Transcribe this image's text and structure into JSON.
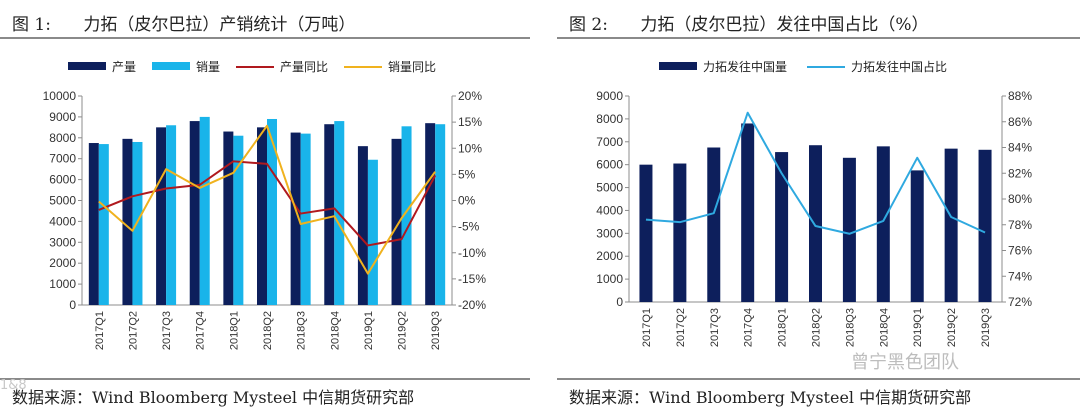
{
  "colors": {
    "dark_blue": "#0d1f5c",
    "light_blue": "#19b4ea",
    "red": "#b0191e",
    "yellow": "#f0b21e",
    "line_blue": "#2fa9e0"
  },
  "watermark": {
    "text": "曾宁黑色团队",
    "corner": "1&8"
  },
  "chart_data": [
    {
      "type": "bar+line",
      "title": "图 1:      力拓（皮尔巴拉）产销统计（万吨）",
      "source": "数据来源：Wind Bloomberg Mysteel 中信期货研究部",
      "categories": [
        "2017Q1",
        "2017Q2",
        "2017Q3",
        "2017Q4",
        "2018Q1",
        "2018Q2",
        "2018Q3",
        "2018Q4",
        "2019Q1",
        "2019Q2",
        "2019Q3"
      ],
      "ylim_left": [
        0,
        10000
      ],
      "yticks_left": [
        "0",
        "1000",
        "2000",
        "3000",
        "4000",
        "5000",
        "6000",
        "7000",
        "8000",
        "9000",
        "10000"
      ],
      "ylim_right": [
        -20,
        20
      ],
      "yticks_right": [
        "-20%",
        "-15%",
        "-10%",
        "-5%",
        "0%",
        "5%",
        "10%",
        "15%",
        "20%"
      ],
      "bars": [
        {
          "name": "产量",
          "color": "#0d1f5c",
          "values": [
            7750,
            7950,
            8500,
            8800,
            8300,
            8500,
            8250,
            8650,
            7600,
            7950,
            8700
          ]
        },
        {
          "name": "销量",
          "color": "#19b4ea",
          "values": [
            7700,
            7800,
            8600,
            9000,
            8100,
            8900,
            8200,
            8800,
            6950,
            8550,
            8650
          ]
        }
      ],
      "lines": [
        {
          "name": "产量同比",
          "color": "#b0191e",
          "values": [
            -1.8,
            0.8,
            2.3,
            3.0,
            7.5,
            7.0,
            -2.5,
            -1.5,
            -8.6,
            -7.4,
            4.8
          ]
        },
        {
          "name": "销量同比",
          "color": "#f0b21e",
          "values": [
            -0.2,
            -5.8,
            6.0,
            2.4,
            5.3,
            14.3,
            -4.5,
            -3.0,
            -14.0,
            -3.4,
            5.5
          ]
        }
      ],
      "legend_order": [
        "产量",
        "销量",
        "产量同比",
        "销量同比"
      ],
      "legend_placement": "top"
    },
    {
      "type": "bar+line",
      "title": "图 2:      力拓（皮尔巴拉）发往中国占比（%）",
      "source": "数据来源：Wind Bloomberg Mysteel 中信期货研究部",
      "categories": [
        "2017Q1",
        "2017Q2",
        "2017Q3",
        "2017Q4",
        "2018Q1",
        "2018Q2",
        "2018Q3",
        "2018Q4",
        "2019Q1",
        "2019Q2",
        "2019Q3"
      ],
      "ylim_left": [
        0,
        9000
      ],
      "yticks_left": [
        "0",
        "1000",
        "2000",
        "3000",
        "4000",
        "5000",
        "6000",
        "7000",
        "8000",
        "9000"
      ],
      "ylim_right": [
        72,
        88
      ],
      "yticks_right": [
        "72%",
        "74%",
        "76%",
        "78%",
        "80%",
        "82%",
        "84%",
        "86%",
        "88%"
      ],
      "bars": [
        {
          "name": "力拓发往中国量",
          "color": "#0d1f5c",
          "values": [
            6000,
            6050,
            6750,
            7800,
            6550,
            6850,
            6300,
            6800,
            5750,
            6700,
            6650
          ]
        }
      ],
      "lines": [
        {
          "name": "力拓发往中国占比",
          "color": "#2fa9e0",
          "values": [
            78.4,
            78.2,
            78.9,
            86.7,
            82.0,
            77.9,
            77.3,
            78.3,
            83.2,
            78.6,
            77.4
          ]
        }
      ],
      "legend_order": [
        "力拓发往中国量",
        "力拓发往中国占比"
      ],
      "legend_placement": "top"
    }
  ]
}
